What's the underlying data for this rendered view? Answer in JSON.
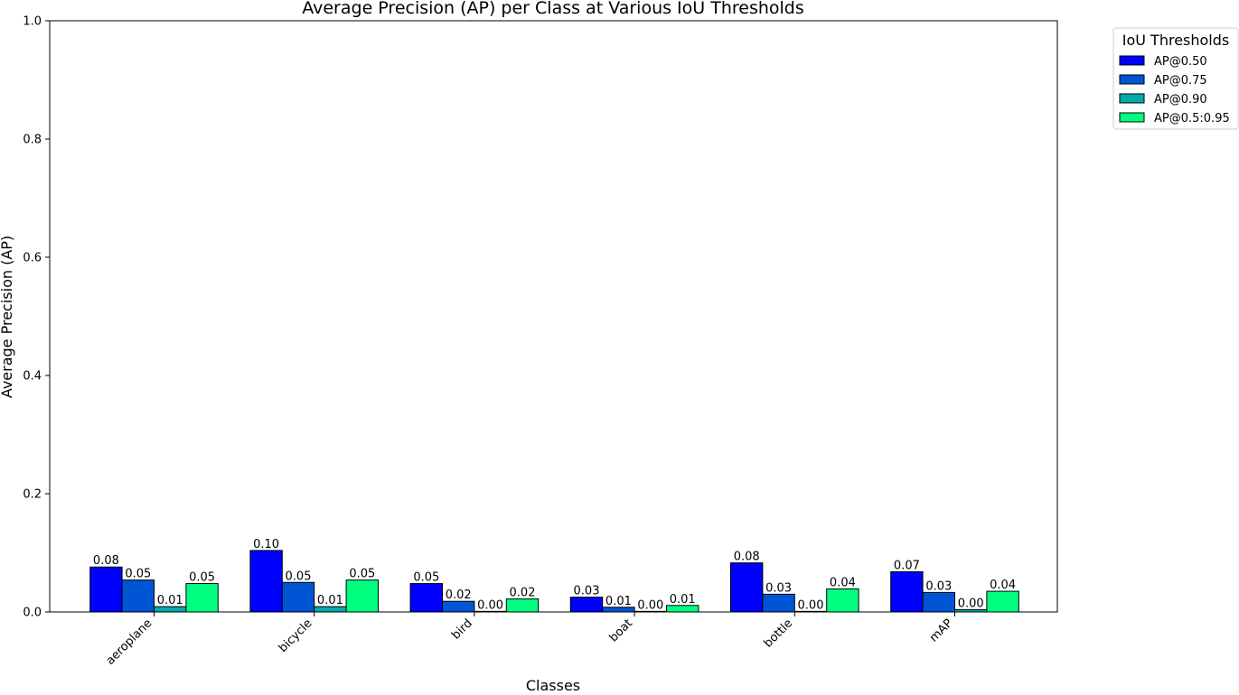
{
  "chart_data": {
    "type": "bar",
    "title": "Average Precision (AP) per Class at Various IoU Thresholds",
    "xlabel": "Classes",
    "ylabel": "Average Precision (AP)",
    "ylim": [
      0,
      1.0
    ],
    "yticks": [
      "0.0",
      "0.2",
      "0.4",
      "0.6",
      "0.8",
      "1.0"
    ],
    "categories": [
      "aeroplane",
      "bicycle",
      "bird",
      "boat",
      "bottle",
      "mAP"
    ],
    "legend_title": "IoU Thresholds",
    "legend_placement": "outside-top-right",
    "grid": false,
    "series": [
      {
        "name": "AP@0.50",
        "color": "#0000ff",
        "values": [
          0.076,
          0.104,
          0.048,
          0.025,
          0.083,
          0.068
        ],
        "labels": [
          "0.08",
          "0.10",
          "0.05",
          "0.03",
          "0.08",
          "0.07"
        ]
      },
      {
        "name": "AP@0.75",
        "color": "#0055d4",
        "values": [
          0.054,
          0.05,
          0.018,
          0.008,
          0.03,
          0.033
        ],
        "labels": [
          "0.05",
          "0.05",
          "0.02",
          "0.01",
          "0.03",
          "0.03"
        ]
      },
      {
        "name": "AP@0.90",
        "color": "#00aaaa",
        "values": [
          0.009,
          0.009,
          0.001,
          0.001,
          0.001,
          0.004
        ],
        "labels": [
          "0.01",
          "0.01",
          "0.00",
          "0.00",
          "0.00",
          "0.00"
        ]
      },
      {
        "name": "AP@0.5:0.95",
        "color": "#00ff80",
        "values": [
          0.048,
          0.054,
          0.022,
          0.011,
          0.039,
          0.035
        ],
        "labels": [
          "0.05",
          "0.05",
          "0.02",
          "0.01",
          "0.04",
          "0.04"
        ]
      }
    ]
  }
}
